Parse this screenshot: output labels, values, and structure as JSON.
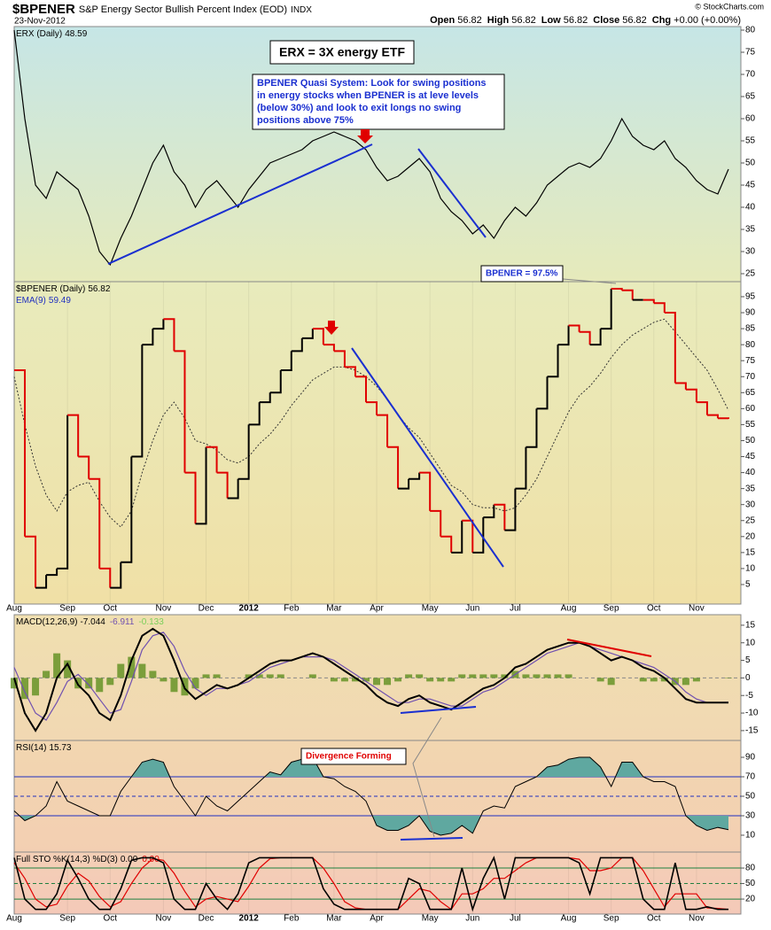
{
  "header": {
    "symbol": "$BPENER",
    "name": "S&P Energy Sector Bullish Percent Index (EOD)",
    "exchange": "INDX",
    "date": "23-Nov-2012",
    "quote": [
      {
        "label": "Open",
        "value": 56.82
      },
      {
        "label": "High",
        "value": 56.82
      },
      {
        "label": "Low",
        "value": 56.82
      },
      {
        "label": "Close",
        "value": 56.82
      }
    ],
    "chg_label": "Chg",
    "chg": "+0.00 (+0.00%)",
    "credit": "© StockCharts.com"
  },
  "chart_data": [
    {
      "type": "line",
      "ylim": [
        23.2,
        80.8
      ],
      "yticks": [
        25,
        30,
        35,
        40,
        45,
        50,
        55,
        60,
        65,
        70,
        75,
        80
      ],
      "annotations": [
        "ERX = 3X energy ETF",
        "BPENER Quasi System:  Look for swing positions",
        "in energy stocks when BPENER is at leve levels",
        "(below 30%) and look to exit longs no swing",
        "positions above 75%"
      ],
      "series": [
        {
          "name": "ERX (Daily)",
          "last": 48.59,
          "color": "#000000",
          "values": [
            80,
            60,
            45,
            42,
            48,
            46,
            44,
            38,
            30,
            27,
            33,
            38,
            44,
            50,
            54,
            48,
            45,
            40,
            44,
            46,
            43,
            40,
            44,
            47,
            50,
            51,
            52,
            53,
            55,
            56,
            57,
            56,
            55,
            53,
            49,
            46,
            47,
            49,
            51,
            48,
            42,
            39,
            37,
            34,
            36,
            33,
            37,
            40,
            38,
            41,
            45,
            47,
            49,
            50,
            49,
            51,
            55,
            60,
            56,
            54,
            53,
            55,
            51,
            49,
            46,
            44,
            43,
            48.59
          ]
        }
      ]
    },
    {
      "type": "step",
      "ylim": [
        -1.1,
        99.7
      ],
      "yticks": [
        5,
        10,
        15,
        20,
        25,
        30,
        35,
        40,
        45,
        50,
        55,
        60,
        65,
        70,
        75,
        80,
        85,
        90,
        95
      ],
      "annotations": [
        "BPENER = 97.5%"
      ],
      "categories": [
        "Aug",
        null,
        null,
        null,
        null,
        "Sep",
        null,
        null,
        null,
        "Oct",
        null,
        null,
        null,
        null,
        "Nov",
        null,
        null,
        null,
        "Dec",
        null,
        null,
        null,
        "2012",
        null,
        null,
        null,
        "Feb",
        null,
        null,
        null,
        "Mar",
        null,
        null,
        null,
        "Apr",
        null,
        null,
        null,
        null,
        "May",
        null,
        null,
        null,
        "Jun",
        null,
        null,
        null,
        "Jul",
        null,
        null,
        null,
        null,
        "Aug",
        null,
        null,
        null,
        "Sep",
        null,
        null,
        null,
        "Oct",
        null,
        null,
        null,
        "Nov",
        null,
        null,
        null
      ],
      "series": [
        {
          "name": "$BPENER (Daily)",
          "last": 56.82,
          "up_color": "#000000",
          "down_color": "#e00000",
          "values": [
            72,
            20,
            4,
            8,
            10,
            58,
            45,
            38,
            10,
            4,
            12,
            45,
            80,
            85,
            88,
            78,
            40,
            24,
            48,
            40,
            32,
            38,
            55,
            62,
            65,
            72,
            78,
            82,
            85,
            80,
            78,
            73,
            70,
            62,
            58,
            48,
            35,
            38,
            40,
            28,
            20,
            15,
            25,
            15,
            26,
            30,
            22,
            35,
            48,
            60,
            70,
            80,
            86,
            84,
            80,
            85,
            97.5,
            97,
            94,
            94,
            93,
            90,
            68,
            66,
            62,
            58,
            57,
            56.82
          ]
        },
        {
          "name": "EMA(9)",
          "last": 59.49,
          "color": "#333333",
          "dashed": true,
          "values": [
            70,
            55,
            42,
            33,
            28,
            34,
            36,
            37,
            31,
            26,
            23,
            28,
            40,
            50,
            58,
            62,
            57,
            50,
            49,
            47,
            44,
            43,
            45,
            49,
            52,
            56,
            61,
            65,
            69,
            71,
            73,
            73,
            72,
            70,
            67,
            63,
            58,
            54,
            51,
            46,
            41,
            36,
            34,
            30,
            29,
            29,
            28,
            29,
            33,
            38,
            45,
            52,
            59,
            64,
            67,
            71,
            76,
            80,
            83,
            85,
            87,
            88,
            84,
            80,
            76,
            72,
            66,
            59.49
          ]
        }
      ]
    },
    {
      "type": "macd",
      "ylim": [
        -17.8,
        18
      ],
      "yticks": [
        -15,
        -10,
        -5,
        0,
        5,
        10,
        15
      ],
      "levels": [
        0
      ],
      "level_color": "#888888",
      "series": [
        {
          "name": "MACD(12,26,9)",
          "last": -7.044,
          "color": "#000000",
          "values": [
            0,
            -10,
            -15,
            -10,
            0,
            4,
            -2,
            -5,
            -10,
            -12,
            -5,
            5,
            12,
            14,
            12,
            5,
            -3,
            -6,
            -4,
            -2,
            -3,
            -2,
            0,
            2,
            4,
            5,
            5,
            6,
            7,
            6,
            4,
            2,
            0,
            -2,
            -5,
            -7,
            -8,
            -6,
            -5,
            -7,
            -8,
            -9,
            -7,
            -5,
            -3,
            -2,
            0,
            3,
            4,
            6,
            8,
            9,
            10,
            10,
            9,
            7,
            5,
            6,
            5,
            3,
            2,
            0,
            -3,
            -6,
            -7,
            -7,
            -7,
            -7.044
          ]
        },
        {
          "name": "signal",
          "last": -6.911,
          "color": "#7050b0",
          "values": [
            3,
            -4,
            -10,
            -12,
            -7,
            -1,
            1,
            -2,
            -6,
            -10,
            -9,
            -1,
            8,
            12,
            13,
            9,
            2,
            -3,
            -5,
            -3,
            -3,
            -2,
            -1,
            1,
            3,
            4,
            5,
            6,
            6,
            6,
            5,
            3,
            1,
            -1,
            -3,
            -5,
            -7,
            -7,
            -6,
            -6,
            -7,
            -8,
            -8,
            -6,
            -4,
            -3,
            -1,
            1,
            3,
            5,
            7,
            8,
            9,
            10,
            9,
            8,
            7,
            6,
            5,
            4,
            3,
            1,
            -1,
            -4,
            -6,
            -7,
            -7,
            -6.911
          ]
        },
        {
          "name": "histogram",
          "last": -0.133,
          "color": "#5e8f1e",
          "label_color": "#7ccf5a",
          "values": [
            -3,
            -6,
            -5,
            2,
            7,
            5,
            -3,
            -3,
            -4,
            -2,
            4,
            6,
            4,
            2,
            -1,
            -4,
            -5,
            -3,
            1,
            1,
            0,
            0,
            1,
            1,
            1,
            1,
            0,
            0,
            1,
            0,
            -1,
            -1,
            -1,
            -1,
            -2,
            -2,
            -1,
            1,
            1,
            -1,
            -1,
            -1,
            1,
            1,
            1,
            1,
            1,
            2,
            1,
            1,
            1,
            1,
            1,
            0,
            0,
            -1,
            -2,
            0,
            0,
            -1,
            -1,
            -1,
            -2,
            -2,
            -1,
            0,
            0,
            -0.133
          ]
        }
      ]
    },
    {
      "type": "rsi",
      "ylim": [
        -7.3,
        107.3
      ],
      "yticks": [
        10,
        30,
        50,
        70,
        90
      ],
      "levels": [
        70,
        50,
        30
      ],
      "level_color": "#2030c0",
      "fill": "#5fa8a0",
      "series": [
        {
          "name": "RSI(14)",
          "last": 15.73,
          "color": "#000000",
          "values": [
            35,
            25,
            30,
            40,
            65,
            45,
            40,
            35,
            30,
            30,
            55,
            70,
            85,
            88,
            85,
            60,
            45,
            30,
            50,
            40,
            35,
            45,
            55,
            65,
            75,
            72,
            85,
            88,
            90,
            70,
            68,
            60,
            55,
            45,
            20,
            15,
            15,
            20,
            30,
            14,
            10,
            12,
            20,
            12,
            35,
            40,
            38,
            60,
            65,
            70,
            80,
            82,
            88,
            90,
            90,
            80,
            60,
            85,
            85,
            70,
            65,
            65,
            60,
            30,
            20,
            15,
            18,
            15.73
          ]
        }
      ],
      "annotations": [
        "Divergence Forming"
      ]
    },
    {
      "type": "stochastic",
      "ylim": [
        -9,
        110.9
      ],
      "yticks": [
        20,
        50,
        80
      ],
      "levels": [
        80,
        50,
        20
      ],
      "level_color": "#208040",
      "categories": [
        "Aug",
        null,
        null,
        null,
        null,
        "Sep",
        null,
        null,
        null,
        "Oct",
        null,
        null,
        null,
        null,
        "Nov",
        null,
        null,
        null,
        "Dec",
        null,
        null,
        null,
        "2012",
        null,
        null,
        null,
        "Feb",
        null,
        null,
        null,
        "Mar",
        null,
        null,
        null,
        "Apr",
        null,
        null,
        null,
        null,
        "May",
        null,
        null,
        null,
        "Jun",
        null,
        null,
        null,
        "Jul",
        null,
        null,
        null,
        null,
        "Aug",
        null,
        null,
        null,
        "Sep",
        null,
        null,
        null,
        "Oct",
        null,
        null,
        null,
        "Nov",
        null,
        null,
        null
      ],
      "series": [
        {
          "name": "Full STO %K(14,3) %D(3)",
          "last": {
            "value": 0,
            "label": "0.00"
          },
          "color": "#000000",
          "values": [
            100,
            20,
            0,
            0,
            30,
            95,
            60,
            20,
            0,
            0,
            40,
            95,
            100,
            100,
            90,
            20,
            0,
            0,
            50,
            20,
            0,
            30,
            90,
            100,
            100,
            100,
            100,
            100,
            100,
            40,
            10,
            0,
            0,
            0,
            0,
            0,
            0,
            60,
            50,
            0,
            0,
            0,
            80,
            0,
            60,
            100,
            20,
            100,
            100,
            100,
            100,
            100,
            100,
            90,
            30,
            100,
            100,
            100,
            100,
            20,
            0,
            0,
            90,
            0,
            0,
            5,
            0,
            0
          ]
        },
        {
          "name": "%D",
          "last": {
            "value": 0,
            "label": "0.00"
          },
          "color": "#e00000",
          "values": [
            90,
            60,
            20,
            5,
            10,
            45,
            70,
            55,
            25,
            5,
            15,
            50,
            80,
            98,
            95,
            70,
            35,
            5,
            20,
            25,
            20,
            15,
            45,
            80,
            98,
            100,
            100,
            100,
            100,
            80,
            50,
            15,
            3,
            0,
            0,
            0,
            0,
            20,
            40,
            35,
            15,
            0,
            30,
            30,
            40,
            60,
            60,
            75,
            90,
            100,
            100,
            100,
            100,
            97,
            75,
            75,
            80,
            100,
            100,
            75,
            40,
            5,
            30,
            30,
            30,
            3,
            2,
            0
          ]
        }
      ]
    }
  ]
}
